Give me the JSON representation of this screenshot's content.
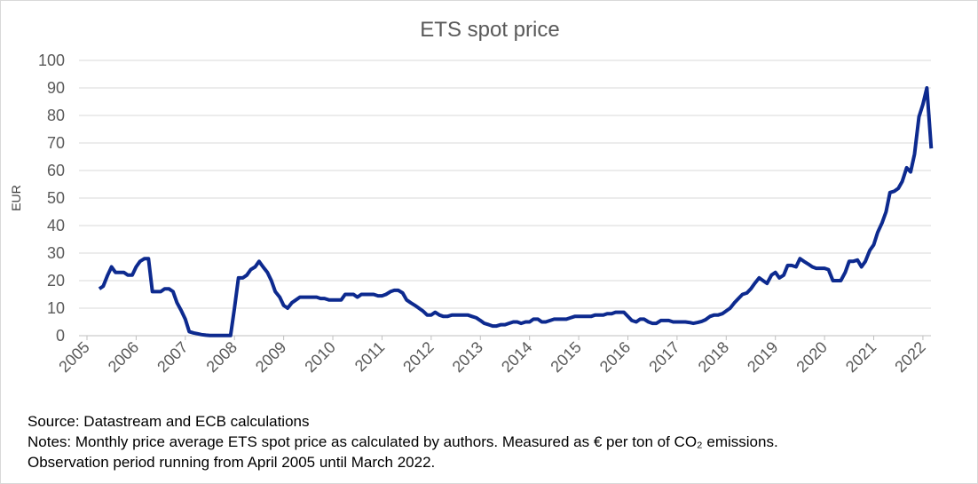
{
  "chart_data": {
    "type": "line",
    "title": "ETS spot price",
    "y_label": "EUR",
    "source": "Source: Datastream and ECB calculations",
    "notes": [
      "Notes: Monthly price average ETS spot price as calculated by authors. Measured as € per ton of CO₂ emissions.",
      "Observation period running from April 2005 until March 2022."
    ],
    "xlim": [
      2005,
      2022.2
    ],
    "xticks": [
      2005,
      2006,
      2007,
      2008,
      2009,
      2010,
      2011,
      2012,
      2013,
      2014,
      2015,
      2016,
      2017,
      2018,
      2019,
      2020,
      2021,
      2022
    ],
    "ylim": [
      0,
      100
    ],
    "yticks": [
      0,
      10,
      20,
      30,
      40,
      50,
      60,
      70,
      80,
      90,
      100
    ],
    "grid": true,
    "series": [
      {
        "name": "ETS spot price",
        "color": "#0d2a8f",
        "x": [
          2005.25,
          2005.33,
          2005.42,
          2005.5,
          2005.58,
          2005.67,
          2005.75,
          2005.83,
          2005.92,
          2006,
          2006.08,
          2006.17,
          2006.25,
          2006.33,
          2006.42,
          2006.5,
          2006.58,
          2006.67,
          2006.75,
          2006.83,
          2006.92,
          2007,
          2007.08,
          2007.17,
          2007.25,
          2007.33,
          2007.42,
          2007.5,
          2007.58,
          2007.67,
          2007.75,
          2007.83,
          2007.92,
          2008,
          2008.08,
          2008.17,
          2008.25,
          2008.33,
          2008.42,
          2008.5,
          2008.58,
          2008.67,
          2008.75,
          2008.83,
          2008.92,
          2009,
          2009.08,
          2009.17,
          2009.25,
          2009.33,
          2009.42,
          2009.5,
          2009.58,
          2009.67,
          2009.75,
          2009.83,
          2009.92,
          2010,
          2010.08,
          2010.17,
          2010.25,
          2010.33,
          2010.42,
          2010.5,
          2010.58,
          2010.67,
          2010.75,
          2010.83,
          2010.92,
          2011,
          2011.08,
          2011.17,
          2011.25,
          2011.33,
          2011.42,
          2011.5,
          2011.58,
          2011.67,
          2011.75,
          2011.83,
          2011.92,
          2012,
          2012.08,
          2012.17,
          2012.25,
          2012.33,
          2012.42,
          2012.5,
          2012.58,
          2012.67,
          2012.75,
          2012.83,
          2012.92,
          2013,
          2013.08,
          2013.17,
          2013.25,
          2013.33,
          2013.42,
          2013.5,
          2013.58,
          2013.67,
          2013.75,
          2013.83,
          2013.92,
          2014,
          2014.08,
          2014.17,
          2014.25,
          2014.33,
          2014.42,
          2014.5,
          2014.58,
          2014.67,
          2014.75,
          2014.83,
          2014.92,
          2015,
          2015.08,
          2015.17,
          2015.25,
          2015.33,
          2015.42,
          2015.5,
          2015.58,
          2015.67,
          2015.75,
          2015.83,
          2015.92,
          2016,
          2016.08,
          2016.17,
          2016.25,
          2016.33,
          2016.42,
          2016.5,
          2016.58,
          2016.67,
          2016.75,
          2016.83,
          2016.92,
          2017,
          2017.08,
          2017.17,
          2017.25,
          2017.33,
          2017.42,
          2017.5,
          2017.58,
          2017.67,
          2017.75,
          2017.83,
          2017.92,
          2018,
          2018.08,
          2018.17,
          2018.25,
          2018.33,
          2018.42,
          2018.5,
          2018.58,
          2018.67,
          2018.75,
          2018.83,
          2018.92,
          2019,
          2019.08,
          2019.17,
          2019.25,
          2019.33,
          2019.42,
          2019.5,
          2019.58,
          2019.67,
          2019.75,
          2019.83,
          2019.92,
          2020,
          2020.08,
          2020.17,
          2020.25,
          2020.33,
          2020.42,
          2020.5,
          2020.58,
          2020.67,
          2020.75,
          2020.83,
          2020.92,
          2021,
          2021.08,
          2021.17,
          2021.25,
          2021.33,
          2021.42,
          2021.5,
          2021.58,
          2021.67,
          2021.75,
          2021.83,
          2021.92,
          2022,
          2022.08,
          2022.17
        ],
        "values": [
          17,
          18,
          22,
          25,
          23,
          23,
          23,
          22,
          22,
          25,
          27,
          28,
          28,
          16,
          16,
          16,
          17,
          17,
          16,
          12,
          9,
          6,
          1.5,
          1,
          0.7,
          0.4,
          0.2,
          0.1,
          0.1,
          0.1,
          0.1,
          0.1,
          0.05,
          10,
          21,
          21,
          22,
          24,
          25,
          27,
          25,
          23,
          20,
          16,
          14,
          11,
          10,
          12,
          13,
          14,
          14,
          14,
          14,
          14,
          13.5,
          13.5,
          13,
          13,
          13,
          13,
          15,
          15,
          15,
          14,
          15,
          15,
          15,
          15,
          14.5,
          14.5,
          15,
          16,
          16.5,
          16.5,
          15.5,
          13,
          12,
          11,
          10,
          9,
          7.5,
          7.5,
          8.5,
          7.5,
          7,
          7,
          7.5,
          7.5,
          7.5,
          7.5,
          7.5,
          7,
          6.5,
          5.5,
          4.5,
          4,
          3.5,
          3.5,
          4,
          4,
          4.5,
          5,
          5,
          4.5,
          5,
          5,
          6,
          6,
          5,
          5,
          5.5,
          6,
          6,
          6,
          6,
          6.5,
          7,
          7,
          7,
          7,
          7,
          7.5,
          7.5,
          7.5,
          8,
          8,
          8.5,
          8.5,
          8.5,
          7,
          5.5,
          5,
          6,
          6,
          5,
          4.5,
          4.5,
          5.5,
          5.5,
          5.5,
          5,
          5,
          5,
          5,
          4.8,
          4.5,
          4.8,
          5.2,
          5.8,
          7,
          7.5,
          7.5,
          8,
          9,
          10,
          12,
          13.5,
          15,
          15.5,
          17,
          19,
          21,
          20,
          19,
          22,
          23,
          21,
          22,
          25.5,
          25.5,
          25,
          28,
          27,
          26,
          25,
          24.5,
          24.5,
          24.5,
          24,
          20,
          20,
          20,
          23,
          27,
          27,
          27.5,
          25,
          27,
          31,
          33,
          37.5,
          41,
          45,
          52,
          52.5,
          53.5,
          56,
          61,
          59.5,
          66,
          79.5,
          84,
          90,
          68
        ]
      }
    ]
  }
}
